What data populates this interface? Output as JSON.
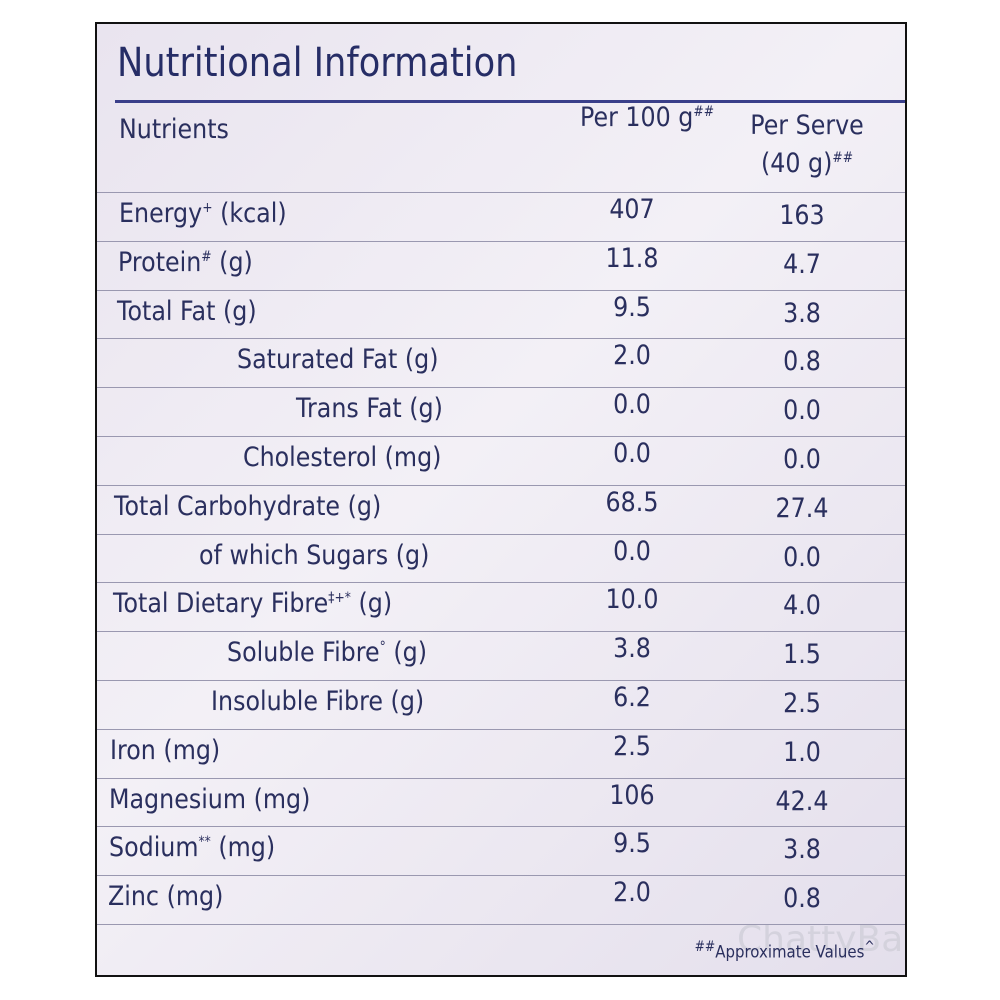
{
  "title": "Nutritional Information",
  "header": {
    "nutrients": "Nutrients",
    "per100": "Per 100 g",
    "per100_mark": "##",
    "per_serve": [
      "Per Serve",
      "(40 g)"
    ],
    "per_serve_mark": "##"
  },
  "rows": [
    {
      "name": "Energy",
      "mark": "+",
      "unit": "(kcal)",
      "per100": "407",
      "per_serve": "163"
    },
    {
      "name": "Protein",
      "mark": "#",
      "unit": "(g)",
      "per100": "11.8",
      "per_serve": "4.7"
    },
    {
      "name": "Total Fat",
      "unit": "(g)",
      "per100": "9.5",
      "per_serve": "3.8"
    },
    {
      "name": "Saturated Fat",
      "unit": "(g)",
      "per100": "2.0",
      "per_serve": "0.8"
    },
    {
      "name": "Trans Fat",
      "unit": "(g)",
      "per100": "0.0",
      "per_serve": "0.0"
    },
    {
      "name": "Cholesterol",
      "unit": "(mg)",
      "per100": "0.0",
      "per_serve": "0.0"
    },
    {
      "name": "Total Carbohydrate",
      "unit": "(g)",
      "per100": "68.5",
      "per_serve": "27.4"
    },
    {
      "name": "of which Sugars",
      "unit": "(g)",
      "per100": "0.0",
      "per_serve": "0.0"
    },
    {
      "name": "Total Dietary Fibre",
      "mark": "‡+*",
      "unit": "(g)",
      "per100": "10.0",
      "per_serve": "4.0"
    },
    {
      "name": "Soluble Fibre",
      "mark": "°",
      "unit": "(g)",
      "per100": "3.8",
      "per_serve": "1.5"
    },
    {
      "name": "Insoluble Fibre",
      "unit": "(g)",
      "per100": "6.2",
      "per_serve": "2.5"
    },
    {
      "name": "Iron",
      "unit": "(mg)",
      "per100": "2.5",
      "per_serve": "1.0"
    },
    {
      "name": "Magnesium",
      "unit": "(mg)",
      "per100": "106",
      "per_serve": "42.4"
    },
    {
      "name": "Sodium",
      "mark": "**",
      "unit": "(mg)",
      "per100": "9.5",
      "per_serve": "3.8"
    },
    {
      "name": "Zinc",
      "unit": "(mg)",
      "per100": "2.0",
      "per_serve": "0.8"
    }
  ],
  "footnote": {
    "mark": "##",
    "text": "Approximate Values",
    "tail": "^"
  },
  "watermark": "ChattyBao"
}
